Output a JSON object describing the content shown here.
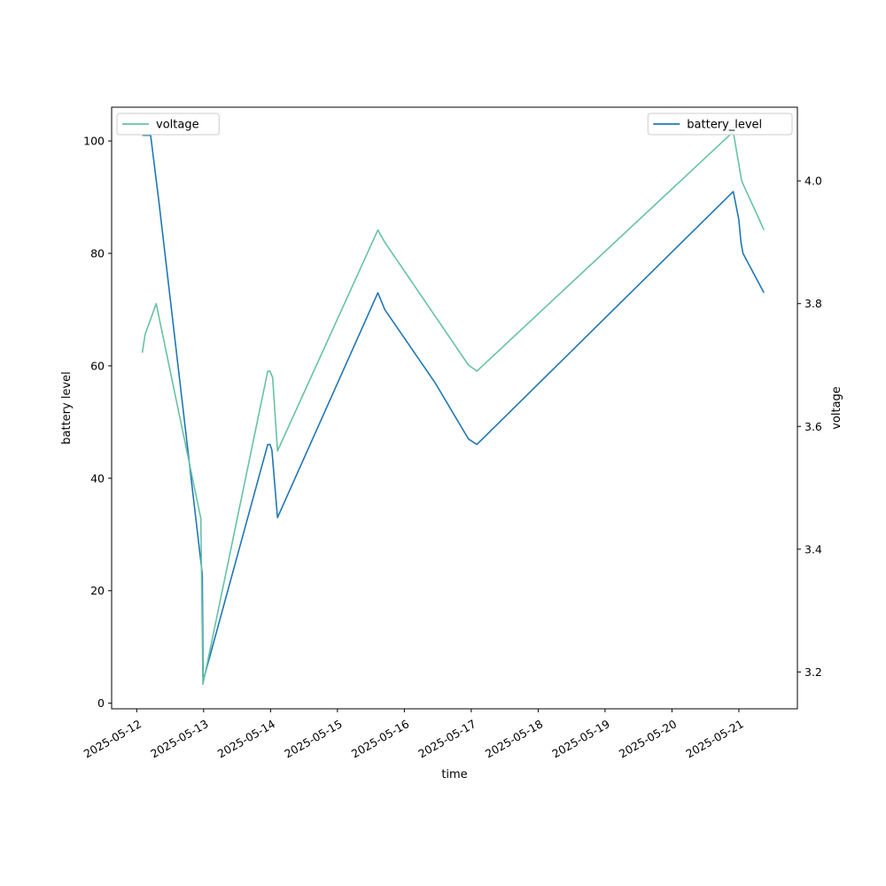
{
  "chart_data": {
    "type": "line",
    "xlabel": "time",
    "ylabel_left": "battery level",
    "ylabel_right": "voltage",
    "x_ticks": [
      "2025-05-12",
      "2025-05-13",
      "2025-05-14",
      "2025-05-15",
      "2025-05-16",
      "2025-05-17",
      "2025-05-18",
      "2025-05-19",
      "2025-05-20",
      "2025-05-21"
    ],
    "y_left_ticks": [
      0,
      20,
      40,
      60,
      80,
      100
    ],
    "y_right_ticks": [
      3.2,
      3.4,
      3.6,
      3.8,
      4.0
    ],
    "y_left_range": [
      -1,
      106
    ],
    "y_right_range": [
      3.14,
      4.12
    ],
    "x_range": [
      "2025-05-11 15:00",
      "2025-05-21 21:00"
    ],
    "grid": false,
    "series": [
      {
        "name": "battery_level",
        "axis": "left",
        "color": "#1f77b4",
        "legend_position": "upper right",
        "points": [
          [
            "2025-05-12 02:00",
            101
          ],
          [
            "2025-05-12 05:00",
            101
          ],
          [
            "2025-05-12 08:00",
            89
          ],
          [
            "2025-05-12 23:30",
            23
          ],
          [
            "2025-05-12 23:50",
            4
          ],
          [
            "2025-05-13 23:00",
            46
          ],
          [
            "2025-05-13 23:50",
            46
          ],
          [
            "2025-05-14 00:30",
            45
          ],
          [
            "2025-05-14 02:30",
            33
          ],
          [
            "2025-05-15 14:30",
            73
          ],
          [
            "2025-05-15 17:00",
            70
          ],
          [
            "2025-05-16 11:00",
            57
          ],
          [
            "2025-05-16 23:00",
            47
          ],
          [
            "2025-05-17 02:00",
            46
          ],
          [
            "2025-05-20 22:00",
            91
          ],
          [
            "2025-05-21 00:00",
            86
          ],
          [
            "2025-05-21 00:45",
            82
          ],
          [
            "2025-05-21 01:30",
            80
          ],
          [
            "2025-05-21 09:00",
            73
          ]
        ]
      },
      {
        "name": "voltage",
        "axis": "right",
        "color": "#66c2a5",
        "legend_position": "upper left",
        "points": [
          [
            "2025-05-12 02:00",
            3.72
          ],
          [
            "2025-05-12 03:00",
            3.75
          ],
          [
            "2025-05-12 07:00",
            3.8
          ],
          [
            "2025-05-12 23:00",
            3.45
          ],
          [
            "2025-05-12 23:45",
            3.18
          ],
          [
            "2025-05-13 23:00",
            3.69
          ],
          [
            "2025-05-13 23:45",
            3.69
          ],
          [
            "2025-05-14 00:45",
            3.68
          ],
          [
            "2025-05-14 02:30",
            3.56
          ],
          [
            "2025-05-15 14:30",
            3.92
          ],
          [
            "2025-05-15 17:00",
            3.9
          ],
          [
            "2025-05-16 23:00",
            3.7
          ],
          [
            "2025-05-17 02:00",
            3.69
          ],
          [
            "2025-05-20 22:00",
            4.08
          ],
          [
            "2025-05-21 01:00",
            4.0
          ],
          [
            "2025-05-21 02:00",
            3.99
          ],
          [
            "2025-05-21 04:00",
            3.97
          ],
          [
            "2025-05-21 05:00",
            3.96
          ],
          [
            "2025-05-21 07:00",
            3.94
          ],
          [
            "2025-05-21 09:00",
            3.92
          ]
        ]
      }
    ]
  }
}
